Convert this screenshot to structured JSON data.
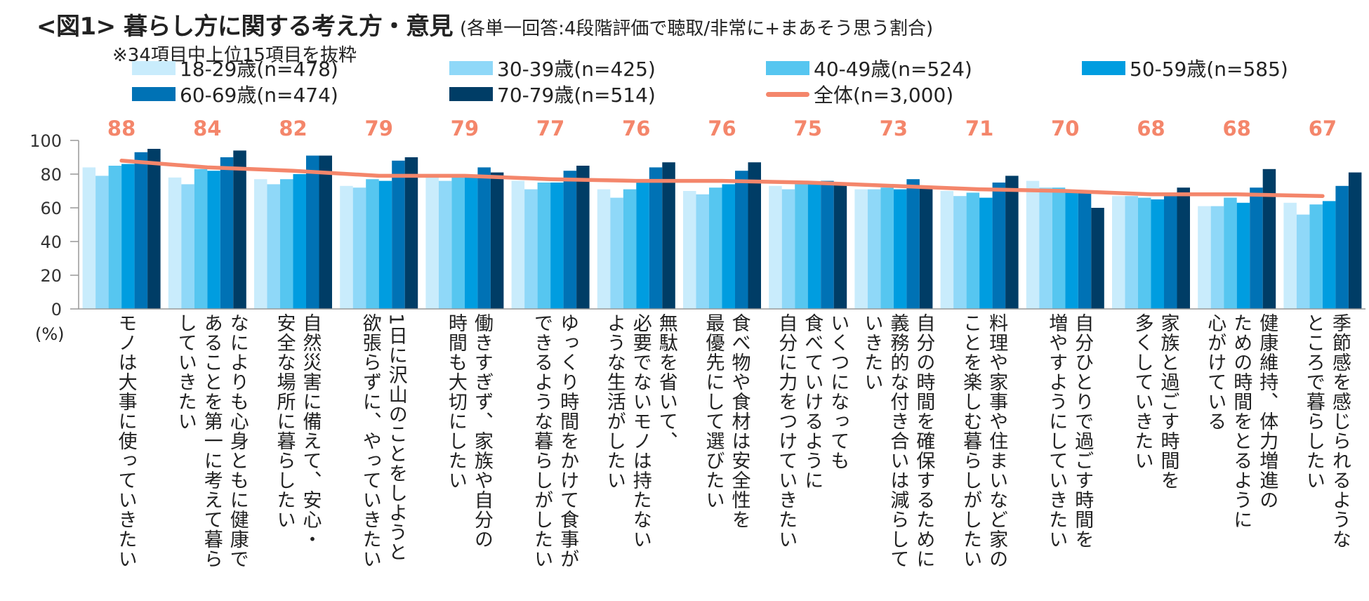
{
  "title": {
    "main": "<図1> 暮らし方に関する考え方・意見",
    "sub": "(各単一回答:4段階評価で聴取/非常に+まあそう思う割合)",
    "note": "※34項目中上位15項目を抜粋"
  },
  "unit_label": "(%)",
  "colors": {
    "series": [
      "#c9ecfc",
      "#8fd8f8",
      "#56c6f0",
      "#009de0",
      "#0072b5",
      "#003d66"
    ],
    "total_line": "#f4866b",
    "axis": "#999999",
    "label_value": "#f4866b"
  },
  "legend": [
    {
      "label": "18-29歳(n=478)",
      "type": "bar"
    },
    {
      "label": "30-39歳(n=425)",
      "type": "bar"
    },
    {
      "label": "40-49歳(n=524)",
      "type": "bar"
    },
    {
      "label": "50-59歳(n=585)",
      "type": "bar"
    },
    {
      "label": "60-69歳(n=474)",
      "type": "bar"
    },
    {
      "label": "70-79歳(n=514)",
      "type": "bar"
    },
    {
      "label": "全体(n=3,000)",
      "type": "line"
    }
  ],
  "chart_data": {
    "type": "bar",
    "ylim": [
      0,
      100
    ],
    "yticks": [
      0,
      20,
      40,
      60,
      80,
      100
    ],
    "categories": [
      "モノは大事に使っていきたい",
      "なによりも心身ともに健康で\nあることを第一に考えて暮ら\nしていきたい",
      "自然災害に備えて、安心・\n安全な場所に暮らしたい",
      "1日に沢山のことをしようと\n欲張らずに、やっていきたい",
      "働きすぎず、家族や自分の\n時間も大切にしたい",
      "ゆっくり時間をかけて食事が\nできるような暮らしがしたい",
      "無駄を省いて、\n必要でないモノは持たない\nような生活がしたい",
      "食べ物や食材は安全性を\n最優先にして選びたい",
      "いくつになっても\n食べていけるように\n自分に力をつけていきたい",
      "自分の時間を確保するために\n義務的な付き合いは減らして\nいきたい",
      "料理や家事や住まいなど家の\nことを楽しむ暮らしがしたい",
      "自分ひとりで過ごす時間を\n増やすようにしていきたい",
      "家族と過ごす時間を\n多くしていきたい",
      "健康維持、体力増進の\nための時間をとるように\n心がけている",
      "季節感を感じられるような\nところで暮らしたい"
    ],
    "series": [
      {
        "name": "18-29歳(n=478)",
        "values": [
          84,
          78,
          77,
          73,
          78,
          76,
          71,
          70,
          73,
          71,
          70,
          76,
          67,
          61,
          63
        ]
      },
      {
        "name": "30-39歳(n=425)",
        "values": [
          79,
          74,
          74,
          72,
          76,
          71,
          66,
          68,
          71,
          71,
          67,
          72,
          67,
          61,
          56
        ]
      },
      {
        "name": "40-49歳(n=524)",
        "values": [
          85,
          83,
          77,
          77,
          79,
          75,
          71,
          72,
          74,
          72,
          69,
          72,
          66,
          66,
          62
        ]
      },
      {
        "name": "50-59歳(n=585)",
        "values": [
          86,
          82,
          80,
          76,
          79,
          75,
          75,
          74,
          74,
          71,
          66,
          70,
          65,
          63,
          64
        ]
      },
      {
        "name": "60-69歳(n=474)",
        "values": [
          93,
          90,
          91,
          88,
          84,
          82,
          84,
          82,
          76,
          77,
          75,
          69,
          68,
          72,
          73
        ]
      },
      {
        "name": "70-79歳(n=514)",
        "values": [
          95,
          94,
          91,
          90,
          81,
          85,
          87,
          87,
          75,
          72,
          79,
          60,
          72,
          83,
          81
        ]
      }
    ],
    "total": {
      "name": "全体(n=3,000)",
      "values": [
        88,
        84,
        82,
        79,
        79,
        77,
        76,
        76,
        75,
        73,
        71,
        70,
        68,
        68,
        67
      ]
    }
  }
}
